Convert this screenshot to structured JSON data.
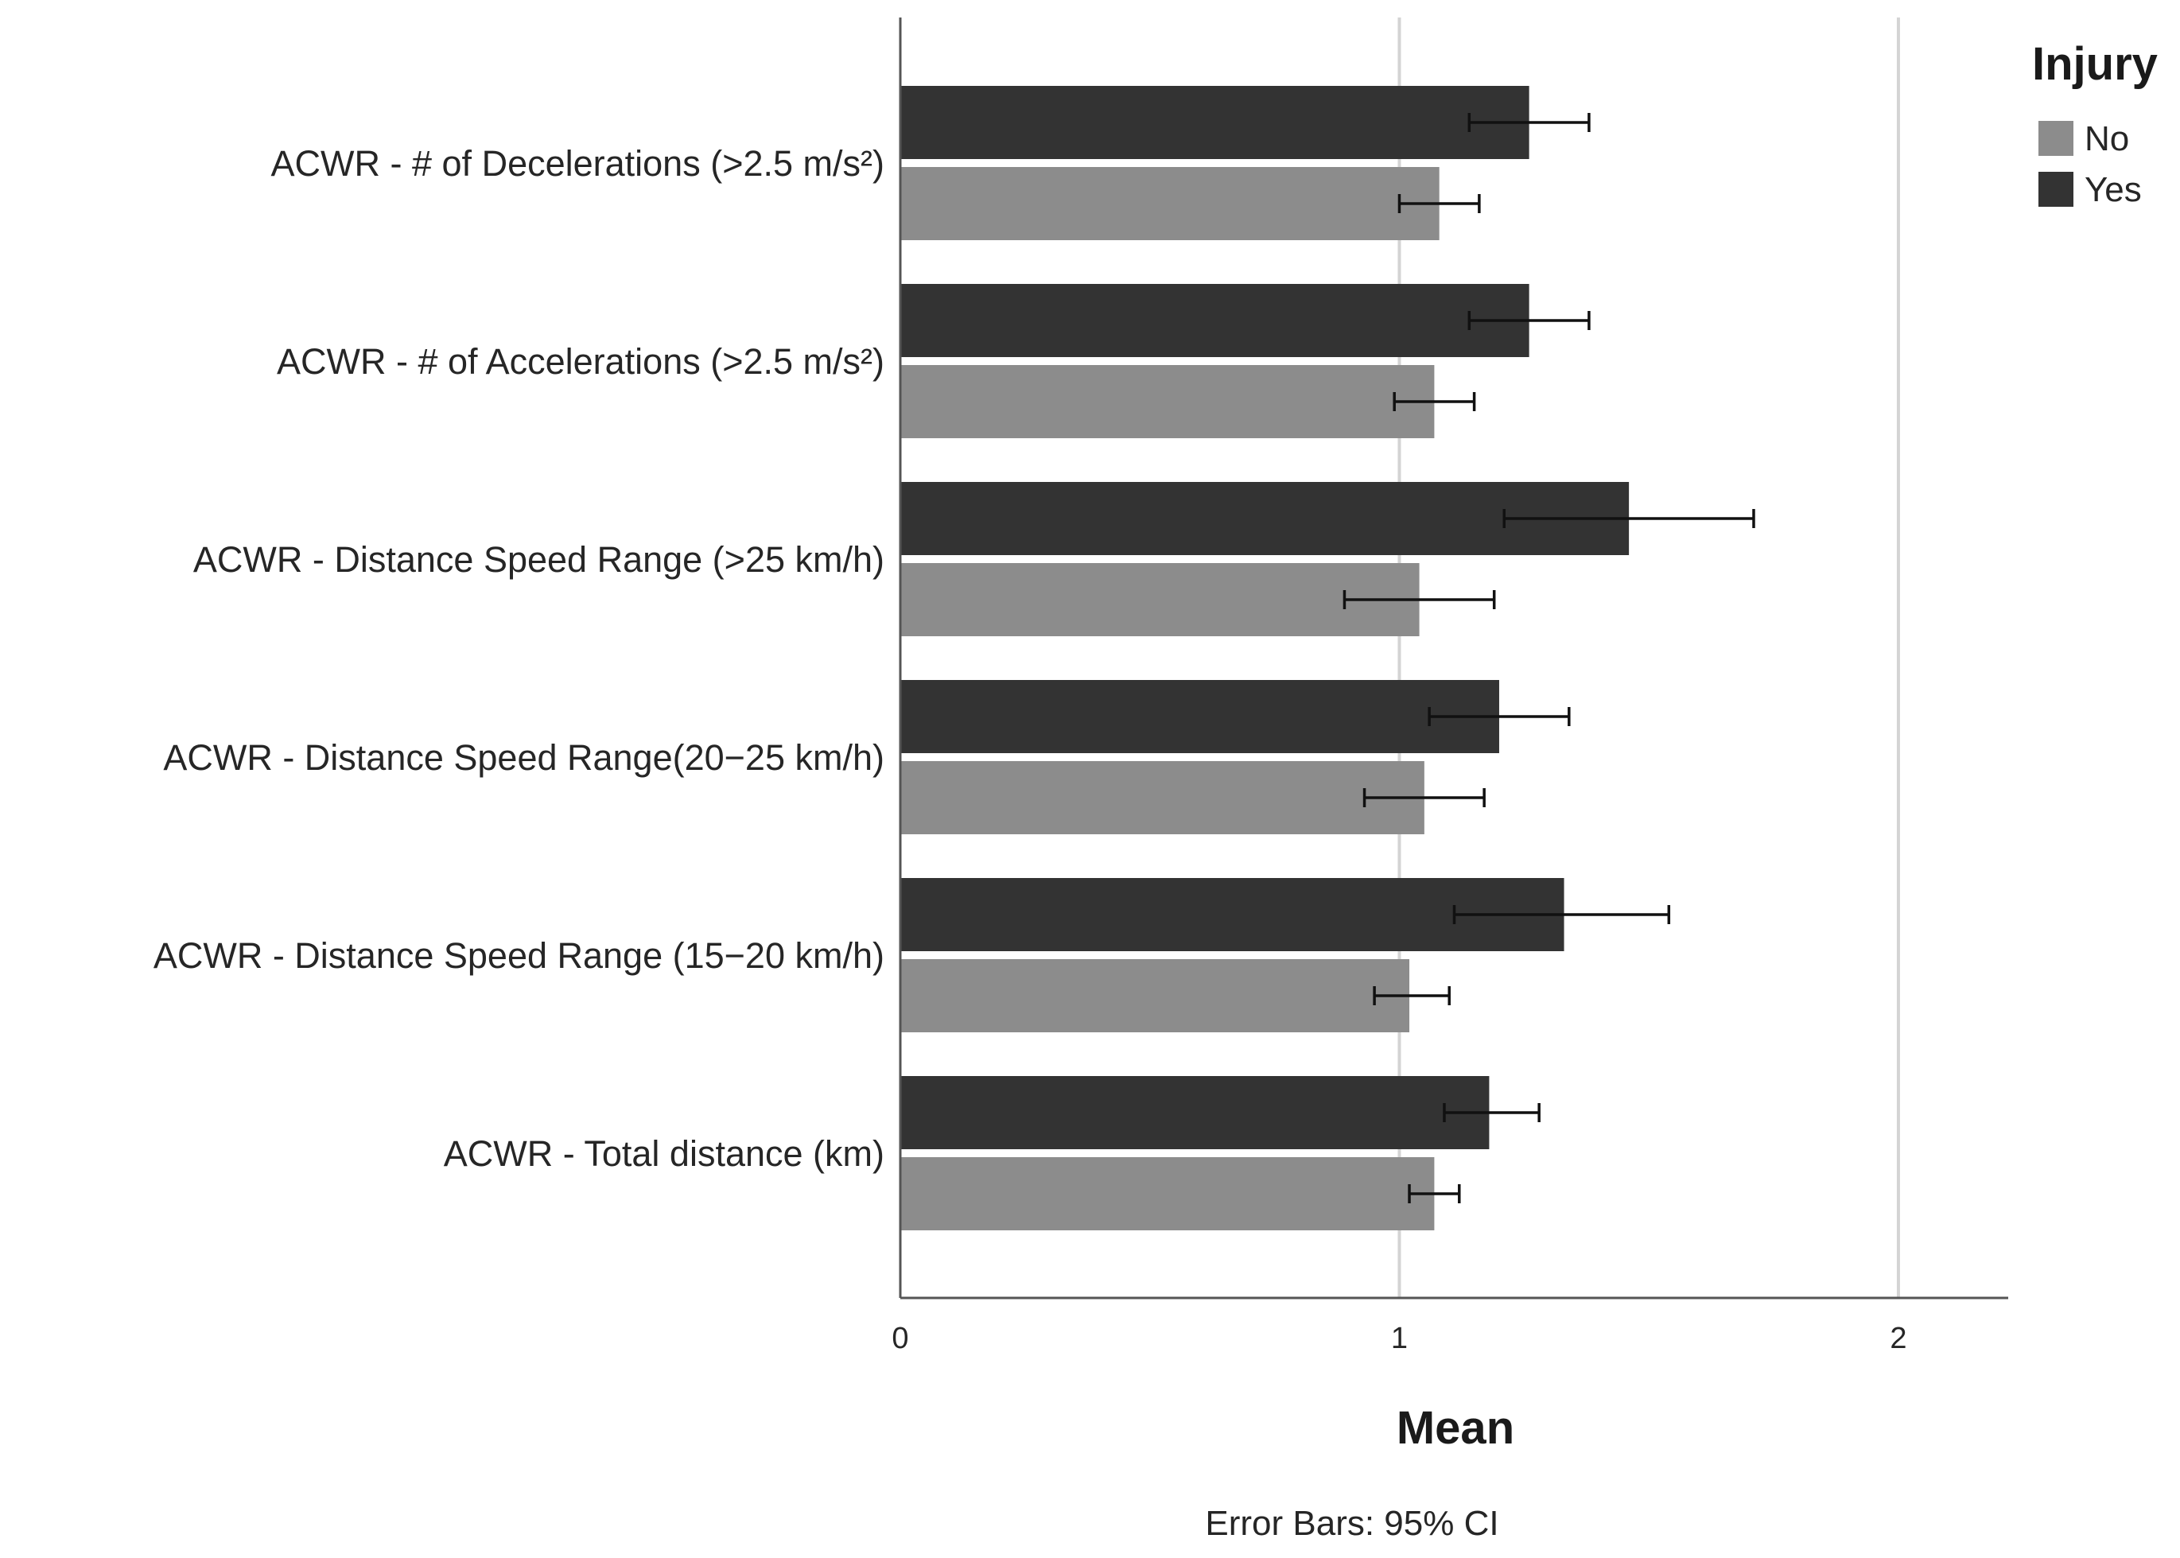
{
  "chart_data": {
    "type": "bar",
    "orientation": "horizontal",
    "categories": [
      "ACWR - # of Decelerations (>2.5 m/s²)",
      "ACWR - # of Accelerations (>2.5 m/s²)",
      "ACWR - Distance Speed Range (>25 km/h)",
      "ACWR - Distance Speed Range(20−25 km/h)",
      "ACWR - Distance Speed Range (15−20 km/h)",
      "ACWR - Total distance (km)"
    ],
    "series": [
      {
        "name": "Yes",
        "color": "#333333",
        "values": [
          1.26,
          1.26,
          1.46,
          1.2,
          1.33,
          1.18
        ],
        "ci_low": [
          1.14,
          1.14,
          1.21,
          1.06,
          1.11,
          1.09
        ],
        "ci_high": [
          1.38,
          1.38,
          1.71,
          1.34,
          1.54,
          1.28
        ]
      },
      {
        "name": "No",
        "color": "#8c8c8c",
        "values": [
          1.08,
          1.07,
          1.04,
          1.05,
          1.02,
          1.07
        ],
        "ci_low": [
          1.0,
          0.99,
          0.89,
          0.93,
          0.95,
          1.02
        ],
        "ci_high": [
          1.16,
          1.15,
          1.19,
          1.17,
          1.1,
          1.12
        ]
      }
    ],
    "xlim": [
      0,
      2.22
    ],
    "x_ticks": [
      "0",
      "1",
      "2"
    ],
    "x_tick_values": [
      0,
      1,
      2
    ],
    "grid": true,
    "xlabel": "Mean",
    "ylabel": "",
    "note": "Error Bars: 95% CI",
    "legend": {
      "title": "Injury",
      "position": "top-right",
      "entries": [
        {
          "label": "No",
          "color": "#8c8c8c"
        },
        {
          "label": "Yes",
          "color": "#333333"
        }
      ]
    }
  }
}
